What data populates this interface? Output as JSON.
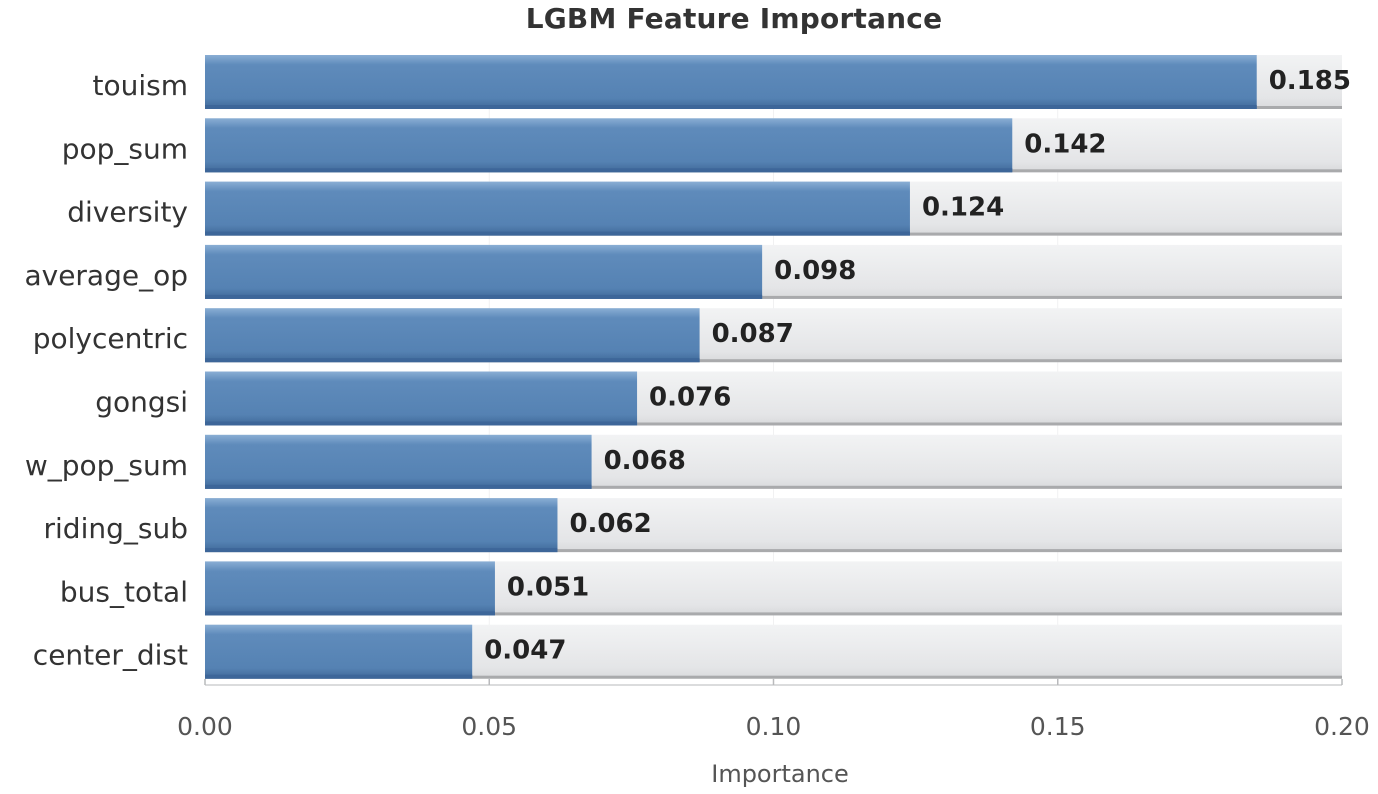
{
  "chart_data": {
    "type": "bar",
    "orientation": "horizontal",
    "title": "LGBM Feature Importance",
    "xlabel": "Importance",
    "ylabel": "",
    "xlim": [
      0,
      0.2
    ],
    "x_ticks": [
      "0.00",
      "0.05",
      "0.10",
      "0.15",
      "0.20"
    ],
    "x_tick_values": [
      0,
      0.05,
      0.1,
      0.15,
      0.2
    ],
    "grid": true,
    "categories": [
      "touism",
      "pop_sum",
      "diversity",
      "average_op",
      "polycentric",
      "gongsi",
      "w_pop_sum",
      "riding_sub",
      "bus_total",
      "center_dist"
    ],
    "values": [
      0.185,
      0.142,
      0.124,
      0.098,
      0.087,
      0.076,
      0.068,
      0.062,
      0.051,
      0.047
    ],
    "value_labels": [
      "0.185",
      "0.142",
      "0.124",
      "0.098",
      "0.087",
      "0.076",
      "0.068",
      "0.062",
      "0.051",
      "0.047"
    ],
    "colors": {
      "bar": "#5b87b8",
      "bar_dark": "#3d6699",
      "bar_light": "#7fa4cc",
      "track": "#e6e7e9",
      "track_shadow": "#a9aaac"
    }
  }
}
